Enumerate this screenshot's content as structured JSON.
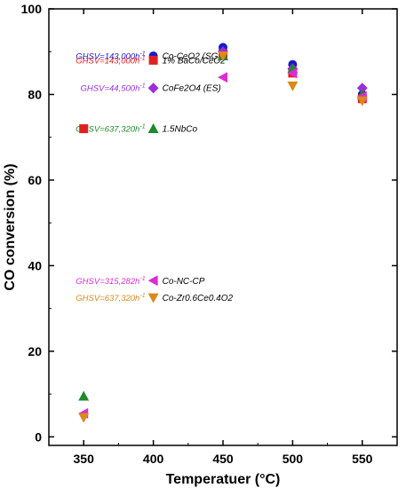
{
  "chart_data": {
    "type": "scatter",
    "title": "",
    "xlabel": "Temperatuer (°C)",
    "ylabel": "CO conversion (%)",
    "xlim": [
      325,
      575
    ],
    "ylim": [
      -2,
      100
    ],
    "xticks": [
      350,
      400,
      450,
      500,
      550
    ],
    "yticks": [
      0,
      20,
      40,
      60,
      80,
      100
    ],
    "grid": false,
    "series": [
      {
        "name": "Co-CeO2 (SG)",
        "ghsv": "GHSV=143,000h",
        "color": "#1a1acc",
        "marker": "circle",
        "points": [
          [
            400,
            89
          ],
          [
            450,
            91
          ],
          [
            500,
            87
          ],
          [
            550,
            80
          ]
        ]
      },
      {
        "name": "1% BaCo/CeO2",
        "ghsv": "GHSV=143,000h",
        "color": "#e02020",
        "marker": "square",
        "points": [
          [
            350,
            72
          ],
          [
            400,
            88
          ],
          [
            450,
            89.5
          ],
          [
            500,
            85
          ],
          [
            550,
            79
          ]
        ]
      },
      {
        "name": "CoFe2O4 (ES)",
        "ghsv": "GHSV=44,500h",
        "color": "#9a2fd6",
        "marker": "diamond",
        "points": [
          [
            400,
            81.5
          ],
          [
            450,
            90
          ],
          [
            500,
            86
          ],
          [
            550,
            81.5
          ]
        ]
      },
      {
        "name": "1.5NbCo",
        "ghsv": "GHSV=637,320h",
        "color": "#1f8a2a",
        "marker": "triangle-up",
        "points": [
          [
            350,
            9.5
          ],
          [
            400,
            72
          ],
          [
            450,
            89
          ],
          [
            500,
            86
          ],
          [
            550,
            80
          ]
        ]
      },
      {
        "name": "Co-NC-CP",
        "ghsv": "GHSV=315,282h",
        "color": "#d72fd0",
        "marker": "triangle-left",
        "points": [
          [
            350,
            5.5
          ],
          [
            400,
            36.5
          ],
          [
            450,
            84
          ],
          [
            500,
            85
          ],
          [
            550,
            79.5
          ]
        ]
      },
      {
        "name": "Co-Zr0.6Ce0.4O2",
        "ghsv": "GHSV=637,320h",
        "color": "#d98a1a",
        "marker": "triangle-down",
        "points": [
          [
            350,
            4.5
          ],
          [
            400,
            32.5
          ],
          [
            450,
            89
          ],
          [
            500,
            82
          ],
          [
            550,
            78.5
          ]
        ]
      }
    ]
  }
}
